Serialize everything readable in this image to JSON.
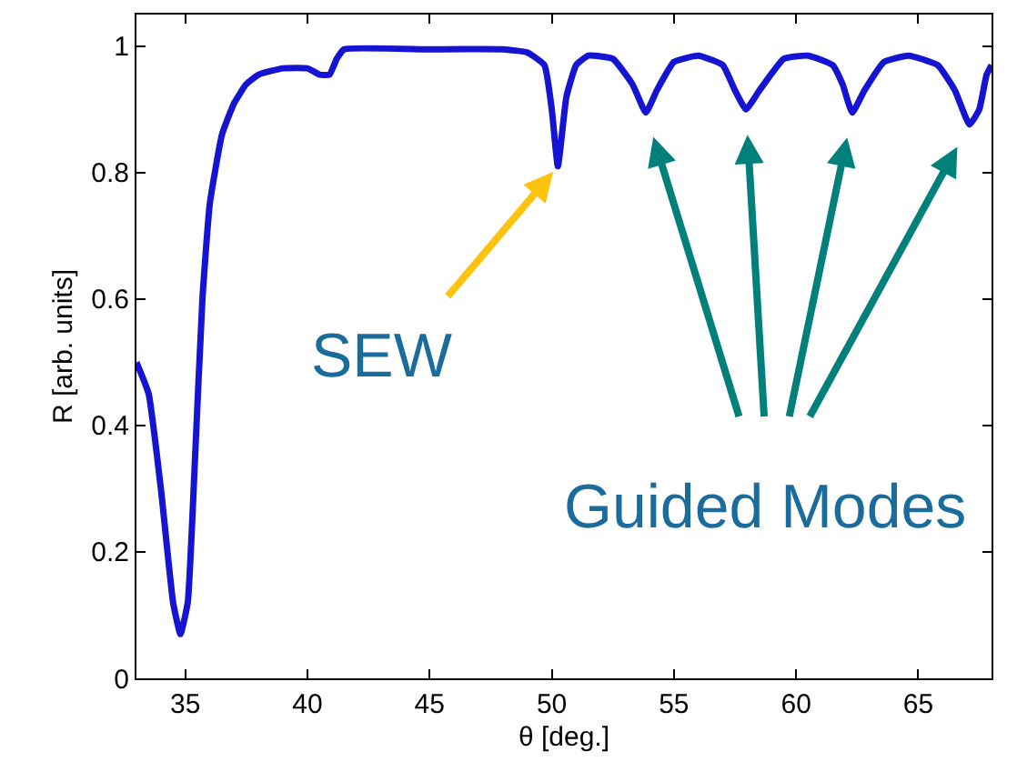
{
  "chart_data": {
    "type": "line",
    "xlabel": "θ [deg.]",
    "ylabel": "R [arb. units]",
    "xlim": [
      33,
      68
    ],
    "ylim": [
      0,
      1.05
    ],
    "xticks": [
      35,
      40,
      45,
      50,
      55,
      60,
      65
    ],
    "yticks": [
      0,
      0.2,
      0.4,
      0.6,
      0.8,
      1
    ],
    "marker": "none",
    "line_style": "solid",
    "series": [
      {
        "color": "#1414d2",
        "x": [
          33,
          33.5,
          34,
          34.5,
          34.8,
          35.1,
          35.4,
          35.7,
          36,
          36.5,
          37,
          37.5,
          38,
          39,
          40,
          40.5,
          40.9,
          41.2,
          41.5,
          45,
          48,
          49,
          49.7,
          50.0,
          50.25,
          50.6,
          51,
          51.5,
          52.5,
          53.3,
          53.85,
          54.3,
          55,
          56,
          57,
          57.5,
          57.95,
          58.5,
          59.5,
          60.5,
          61.5,
          61.9,
          62.3,
          62.8,
          63.6,
          64.6,
          65.8,
          66.5,
          67.1,
          67.5,
          67.8,
          68
        ],
        "values": [
          0.5,
          0.45,
          0.3,
          0.12,
          0.07,
          0.12,
          0.35,
          0.6,
          0.75,
          0.86,
          0.91,
          0.94,
          0.955,
          0.965,
          0.965,
          0.955,
          0.955,
          0.98,
          0.995,
          0.995,
          0.995,
          0.99,
          0.97,
          0.9,
          0.81,
          0.92,
          0.97,
          0.985,
          0.98,
          0.94,
          0.895,
          0.93,
          0.975,
          0.985,
          0.97,
          0.93,
          0.9,
          0.93,
          0.98,
          0.985,
          0.97,
          0.94,
          0.895,
          0.93,
          0.975,
          0.985,
          0.97,
          0.93,
          0.876,
          0.9,
          0.955,
          0.97
        ]
      }
    ],
    "annotations": [
      {
        "text": "SEW",
        "x": 50.25,
        "y": 0.81
      },
      {
        "text": "Guided Modes",
        "x": 53.85,
        "y": 0.895
      }
    ]
  }
}
